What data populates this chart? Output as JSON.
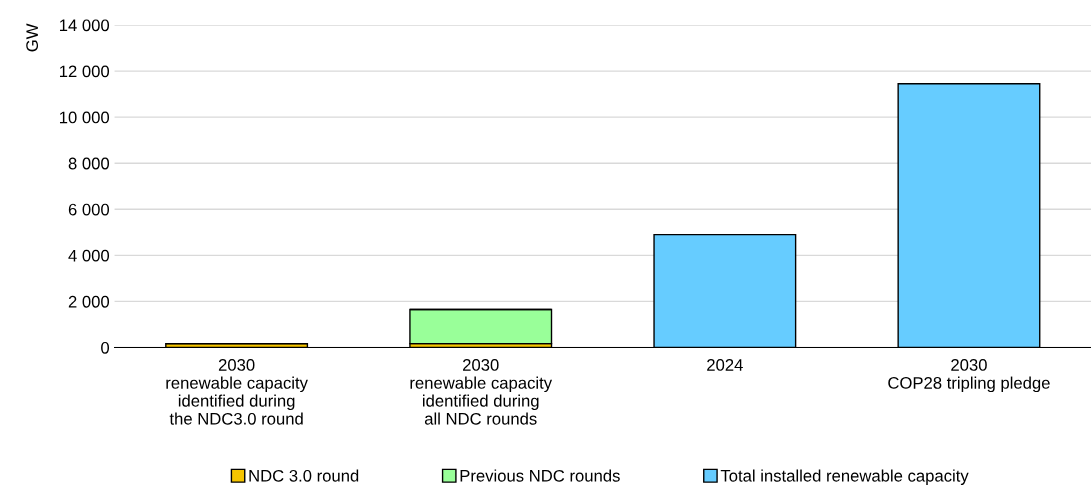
{
  "chart_data": {
    "type": "bar",
    "stacked": true,
    "ylabel": "GW",
    "categories": [
      "2030\nrenewable capacity\nidentified during\nthe NDC3.0 round",
      "2030\nrenewable capacity\nidentified during\nall NDC rounds",
      "2024",
      "2030\nCOP28 tripling pledge"
    ],
    "series": [
      {
        "name": "NDC 3.0 round",
        "color": "#f5c400",
        "values": [
          170,
          170,
          null,
          null
        ]
      },
      {
        "name": "Previous NDC rounds",
        "color": "#99ff99",
        "values": [
          null,
          1480,
          null,
          null
        ]
      },
      {
        "name": "Total installed renewable capacity",
        "color": "#66ccff",
        "values": [
          null,
          null,
          4900,
          11450
        ]
      }
    ],
    "ylim": [
      0,
      14000
    ],
    "yticks": [
      {
        "value": 0,
        "label": "0"
      },
      {
        "value": 2000,
        "label": "2 000"
      },
      {
        "value": 4000,
        "label": "4 000"
      },
      {
        "value": 6000,
        "label": "6 000"
      },
      {
        "value": 8000,
        "label": "8 000"
      },
      {
        "value": 10000,
        "label": "10 000"
      },
      {
        "value": 12000,
        "label": "12 000"
      },
      {
        "value": 14000,
        "label": "14 000"
      }
    ],
    "grid": "y",
    "legend": "bottom"
  }
}
